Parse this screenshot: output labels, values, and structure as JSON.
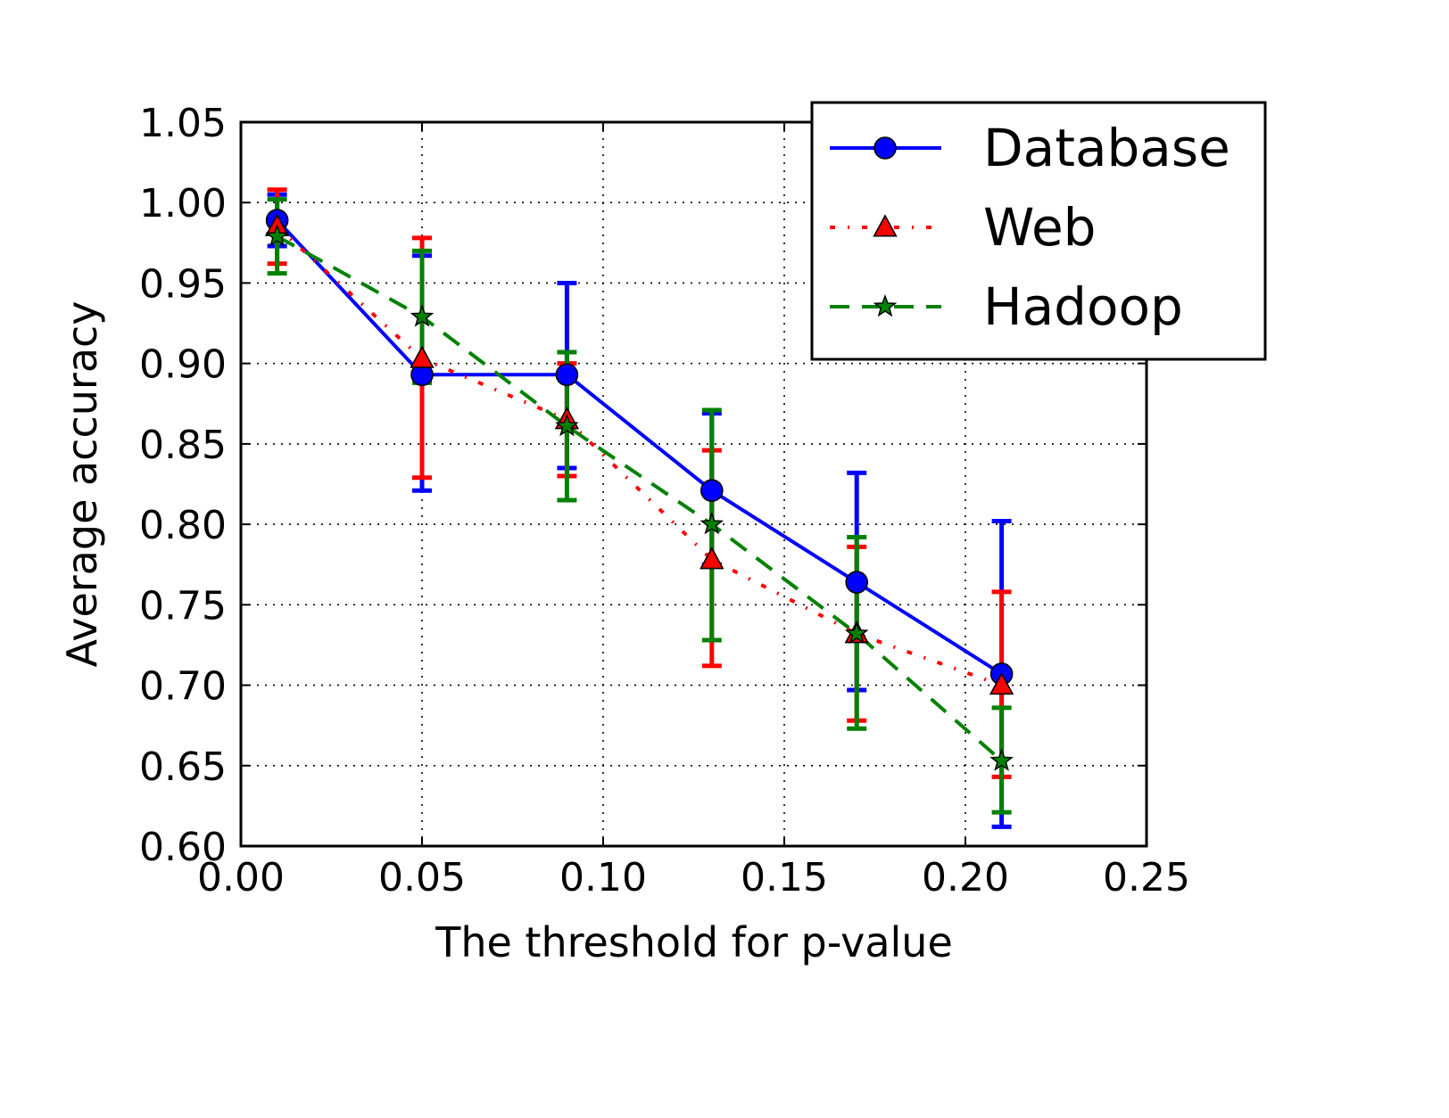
{
  "chart_data": {
    "type": "line",
    "title": "",
    "xlabel": "The threshold for p-value",
    "ylabel": "Average accuracy",
    "xlim": [
      0.0,
      0.25
    ],
    "ylim": [
      0.6,
      1.05
    ],
    "x_ticks": [
      "0.00",
      "0.05",
      "0.10",
      "0.15",
      "0.20",
      "0.25"
    ],
    "y_ticks": [
      "0.60",
      "0.65",
      "0.70",
      "0.75",
      "0.80",
      "0.85",
      "0.90",
      "0.95",
      "1.00",
      "1.05"
    ],
    "grid": true,
    "legend_position": "top-right",
    "x": [
      0.01,
      0.05,
      0.09,
      0.13,
      0.17,
      0.21
    ],
    "series": [
      {
        "name": "Database",
        "color": "#0000ff",
        "marker": "circle",
        "linestyle": "solid",
        "values": [
          0.989,
          0.893,
          0.893,
          0.821,
          0.764,
          0.707
        ],
        "err_low": [
          0.973,
          0.821,
          0.835,
          0.775,
          0.697,
          0.612
        ],
        "err_high": [
          1.005,
          0.967,
          0.95,
          0.869,
          0.832,
          0.802
        ]
      },
      {
        "name": "Web",
        "color": "#ff0000",
        "marker": "triangle",
        "linestyle": "dashdot",
        "values": [
          0.985,
          0.903,
          0.865,
          0.778,
          0.732,
          0.7
        ],
        "err_low": [
          0.962,
          0.829,
          0.83,
          0.712,
          0.678,
          0.643
        ],
        "err_high": [
          1.008,
          0.978,
          0.9,
          0.846,
          0.786,
          0.758
        ]
      },
      {
        "name": "Hadoop",
        "color": "#008000",
        "marker": "star",
        "linestyle": "dashed",
        "values": [
          0.979,
          0.929,
          0.861,
          0.8,
          0.732,
          0.653
        ],
        "err_low": [
          0.956,
          0.888,
          0.815,
          0.728,
          0.673,
          0.621
        ],
        "err_high": [
          1.002,
          0.97,
          0.907,
          0.871,
          0.792,
          0.686
        ]
      }
    ]
  }
}
